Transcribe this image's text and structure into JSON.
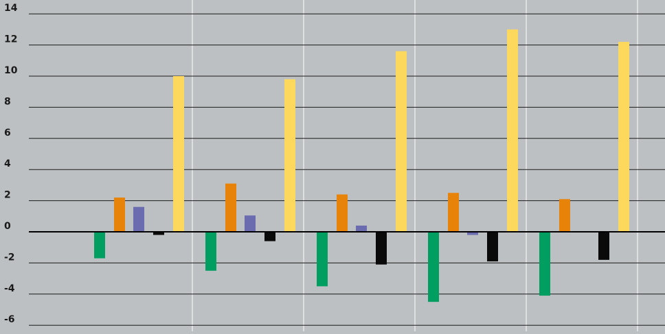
{
  "chart_data": {
    "type": "bar",
    "title": "",
    "xlabel": "",
    "ylabel": "",
    "ylim": [
      -6,
      14
    ],
    "yticks": [
      "14",
      "12",
      "10",
      "8",
      "6",
      "4",
      "2",
      "0",
      "-2",
      "-4",
      "-6"
    ],
    "tick_values": [
      14,
      12,
      10,
      8,
      6,
      4,
      2,
      0,
      -2,
      -4,
      -6
    ],
    "grid": "horizontal black lines, vertical white separators between groups",
    "legend": "none",
    "background_color": "#bdc0c2",
    "categories": [
      "",
      "",
      "",
      "",
      ""
    ],
    "series": [
      {
        "color": "#009e60",
        "values": [
          -1.7,
          -2.5,
          -3.5,
          -4.5,
          -4.1
        ]
      },
      {
        "color": "#e8830a",
        "values": [
          2.2,
          3.1,
          2.4,
          2.5,
          2.1
        ]
      },
      {
        "color": "#6b6cb0",
        "values": [
          1.6,
          1.05,
          0.4,
          -0.2,
          0
        ]
      },
      {
        "color": "#0a0a0a",
        "values": [
          -0.2,
          -0.6,
          -2.1,
          -1.9,
          -1.8
        ]
      },
      {
        "color": "#fcd95c",
        "values": [
          10.0,
          9.8,
          11.6,
          13.0,
          12.2
        ]
      }
    ]
  }
}
